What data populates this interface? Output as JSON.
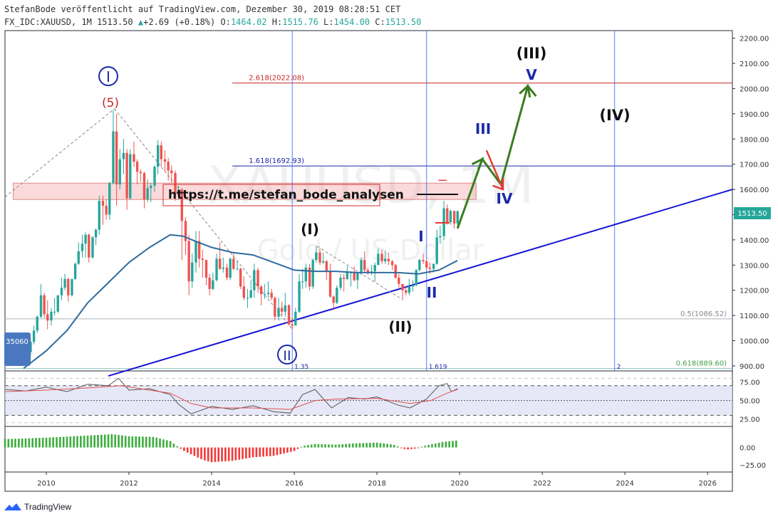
{
  "header": {
    "publish_line": "StefanBode veröffentlicht auf TradingView.com, Dezember 30, 2019 08:28:51 CET",
    "symbol": "FX_IDC:XAUUSD, 1M",
    "last": "1513.50",
    "change_arrow": "▲",
    "change": "+2.69 (+0.18%)",
    "o_label": "O:",
    "o": "1464.02",
    "h_label": "H:",
    "h": "1515.76",
    "l_label": "L:",
    "l": "1454.00",
    "c_label": "C:",
    "c": "1513.50"
  },
  "watermark": {
    "symbol": "XAUUSD, 1M",
    "name": "Gold / US-Dollar"
  },
  "price_axis": {
    "ticks": [
      "2200.00",
      "2100.00",
      "2000.00",
      "1900.00",
      "1800.00",
      "1700.00",
      "1600.00",
      "1500.00",
      "1400.00",
      "1300.00",
      "1200.00",
      "1100.00",
      "1000.00",
      "900.00"
    ],
    "last_price_badge": "1513.50"
  },
  "time_axis": {
    "ticks": [
      "2010",
      "2012",
      "2014",
      "2016",
      "2018",
      "2020",
      "2022",
      "2024",
      "2026"
    ]
  },
  "rsi_axis": {
    "ticks": [
      "75.00",
      "50.00",
      "25.00"
    ]
  },
  "osc_axis": {
    "ticks": [
      "0.00",
      "−25.00"
    ]
  },
  "left_badge": "35060",
  "annotations": {
    "link": "https://t.me/stefan_bode_analysen",
    "fib_2618": "2.618(2022.08)",
    "fib_1618": "1.618(1692.93)",
    "fib_05": "0.5(1086.52)",
    "fib_0618": "0.618(889.60)",
    "time_fib_1": "1.35",
    "time_fib_2": "1.619",
    "time_fib_3": "2",
    "wave_I_circle": "I",
    "wave_5": "(5)",
    "wave_II_circle": "II",
    "wave_I_paren": "(I)",
    "wave_II_paren": "(II)",
    "wave_I_blue": "I",
    "wave_II_blue": "II",
    "wave_III_blue": "III",
    "wave_IV_blue": "IV",
    "wave_V_blue": "V",
    "wave_III_paren": "(III)",
    "wave_IV_paren": "(IV)",
    "minus_sign": "−"
  },
  "footer": {
    "brand": "TradingView"
  },
  "colors": {
    "up": "#26a69a",
    "down": "#ef5350",
    "ma": "#2e6b9e",
    "trend": "#1414d8",
    "forecast": "#3a7d1e",
    "wave_blue": "#1a2aa8",
    "zone": "rgba(240,150,150,0.35)"
  },
  "chart_data": {
    "type": "candlestick",
    "title": "",
    "timeframe": "1M",
    "ylim": [
      880,
      2230
    ],
    "xlim": [
      2009.0,
      2026.6
    ],
    "candles": [
      [
        2009.45,
        950,
        960,
        920,
        935
      ],
      [
        2009.53,
        935,
        960,
        920,
        955
      ],
      [
        2009.62,
        955,
        1000,
        940,
        995
      ],
      [
        2009.7,
        995,
        1060,
        985,
        1040
      ],
      [
        2009.78,
        1040,
        1100,
        1030,
        1095
      ],
      [
        2009.87,
        1095,
        1225,
        1090,
        1180
      ],
      [
        2009.95,
        1180,
        1190,
        1090,
        1105
      ],
      [
        2010.03,
        1105,
        1160,
        1045,
        1080
      ],
      [
        2010.12,
        1080,
        1130,
        1060,
        1115
      ],
      [
        2010.2,
        1115,
        1170,
        1100,
        1115
      ],
      [
        2010.28,
        1115,
        1180,
        1110,
        1180
      ],
      [
        2010.37,
        1180,
        1250,
        1160,
        1210
      ],
      [
        2010.45,
        1210,
        1265,
        1200,
        1245
      ],
      [
        2010.53,
        1245,
        1250,
        1155,
        1180
      ],
      [
        2010.62,
        1180,
        1245,
        1175,
        1245
      ],
      [
        2010.7,
        1245,
        1310,
        1240,
        1305
      ],
      [
        2010.78,
        1305,
        1390,
        1300,
        1355
      ],
      [
        2010.87,
        1355,
        1420,
        1330,
        1385
      ],
      [
        2010.95,
        1385,
        1430,
        1330,
        1420
      ],
      [
        2011.03,
        1420,
        1425,
        1310,
        1330
      ],
      [
        2011.12,
        1330,
        1415,
        1325,
        1410
      ],
      [
        2011.2,
        1410,
        1445,
        1380,
        1440
      ],
      [
        2011.28,
        1440,
        1575,
        1420,
        1555
      ],
      [
        2011.37,
        1555,
        1575,
        1460,
        1535
      ],
      [
        2011.45,
        1535,
        1560,
        1480,
        1500
      ],
      [
        2011.53,
        1500,
        1630,
        1480,
        1625
      ],
      [
        2011.62,
        1625,
        1915,
        1620,
        1830
      ],
      [
        2011.7,
        1830,
        1900,
        1535,
        1620
      ],
      [
        2011.78,
        1620,
        1760,
        1600,
        1720
      ],
      [
        2011.87,
        1720,
        1800,
        1660,
        1745
      ],
      [
        2011.95,
        1745,
        1760,
        1520,
        1565
      ],
      [
        2012.03,
        1565,
        1760,
        1560,
        1740
      ],
      [
        2012.12,
        1740,
        1790,
        1690,
        1710
      ],
      [
        2012.2,
        1710,
        1720,
        1620,
        1670
      ],
      [
        2012.28,
        1670,
        1680,
        1630,
        1665
      ],
      [
        2012.37,
        1665,
        1670,
        1525,
        1560
      ],
      [
        2012.45,
        1560,
        1640,
        1550,
        1605
      ],
      [
        2012.53,
        1605,
        1625,
        1550,
        1615
      ],
      [
        2012.62,
        1615,
        1695,
        1590,
        1690
      ],
      [
        2012.7,
        1690,
        1795,
        1660,
        1775
      ],
      [
        2012.78,
        1775,
        1790,
        1690,
        1720
      ],
      [
        2012.87,
        1720,
        1755,
        1670,
        1710
      ],
      [
        2012.95,
        1710,
        1725,
        1635,
        1675
      ],
      [
        2013.03,
        1675,
        1695,
        1625,
        1665
      ],
      [
        2013.12,
        1665,
        1675,
        1555,
        1580
      ],
      [
        2013.2,
        1580,
        1615,
        1560,
        1600
      ],
      [
        2013.28,
        1600,
        1605,
        1320,
        1475
      ],
      [
        2013.37,
        1475,
        1490,
        1340,
        1395
      ],
      [
        2013.45,
        1395,
        1420,
        1180,
        1235
      ],
      [
        2013.53,
        1235,
        1345,
        1210,
        1310
      ],
      [
        2013.62,
        1310,
        1435,
        1270,
        1395
      ],
      [
        2013.7,
        1395,
        1435,
        1290,
        1325
      ],
      [
        2013.78,
        1325,
        1360,
        1250,
        1320
      ],
      [
        2013.87,
        1320,
        1320,
        1220,
        1250
      ],
      [
        2013.95,
        1250,
        1265,
        1180,
        1205
      ],
      [
        2014.03,
        1205,
        1270,
        1200,
        1240
      ],
      [
        2014.12,
        1240,
        1345,
        1235,
        1325
      ],
      [
        2014.2,
        1325,
        1390,
        1280,
        1285
      ],
      [
        2014.28,
        1285,
        1330,
        1270,
        1290
      ],
      [
        2014.37,
        1290,
        1305,
        1240,
        1250
      ],
      [
        2014.45,
        1250,
        1330,
        1240,
        1325
      ],
      [
        2014.53,
        1325,
        1345,
        1280,
        1285
      ],
      [
        2014.62,
        1285,
        1315,
        1280,
        1285
      ],
      [
        2014.7,
        1285,
        1290,
        1205,
        1215
      ],
      [
        2014.78,
        1215,
        1255,
        1160,
        1170
      ],
      [
        2014.87,
        1170,
        1205,
        1130,
        1170
      ],
      [
        2014.95,
        1170,
        1240,
        1170,
        1200
      ],
      [
        2015.03,
        1200,
        1305,
        1170,
        1280
      ],
      [
        2015.12,
        1280,
        1290,
        1190,
        1215
      ],
      [
        2015.2,
        1215,
        1220,
        1140,
        1185
      ],
      [
        2015.28,
        1185,
        1225,
        1165,
        1185
      ],
      [
        2015.37,
        1185,
        1235,
        1170,
        1190
      ],
      [
        2015.45,
        1190,
        1205,
        1160,
        1170
      ],
      [
        2015.53,
        1170,
        1175,
        1080,
        1095
      ],
      [
        2015.62,
        1095,
        1170,
        1080,
        1130
      ],
      [
        2015.7,
        1130,
        1155,
        1100,
        1115
      ],
      [
        2015.78,
        1115,
        1190,
        1095,
        1140
      ],
      [
        2015.87,
        1140,
        1145,
        1060,
        1065
      ],
      [
        2015.95,
        1065,
        1090,
        1045,
        1060
      ],
      [
        2016.03,
        1060,
        1130,
        1060,
        1115
      ],
      [
        2016.12,
        1115,
        1265,
        1110,
        1235
      ],
      [
        2016.2,
        1235,
        1285,
        1205,
        1235
      ],
      [
        2016.28,
        1235,
        1305,
        1210,
        1290
      ],
      [
        2016.37,
        1290,
        1305,
        1200,
        1215
      ],
      [
        2016.45,
        1215,
        1325,
        1205,
        1320
      ],
      [
        2016.53,
        1320,
        1375,
        1310,
        1350
      ],
      [
        2016.62,
        1350,
        1365,
        1300,
        1310
      ],
      [
        2016.7,
        1310,
        1350,
        1305,
        1315
      ],
      [
        2016.78,
        1315,
        1320,
        1240,
        1275
      ],
      [
        2016.87,
        1275,
        1305,
        1170,
        1175
      ],
      [
        2016.95,
        1175,
        1180,
        1120,
        1150
      ],
      [
        2017.03,
        1150,
        1220,
        1145,
        1210
      ],
      [
        2017.12,
        1210,
        1265,
        1200,
        1250
      ],
      [
        2017.2,
        1250,
        1265,
        1195,
        1245
      ],
      [
        2017.28,
        1245,
        1295,
        1240,
        1270
      ],
      [
        2017.37,
        1270,
        1275,
        1215,
        1270
      ],
      [
        2017.45,
        1270,
        1295,
        1235,
        1240
      ],
      [
        2017.53,
        1240,
        1270,
        1205,
        1270
      ],
      [
        2017.62,
        1270,
        1330,
        1260,
        1320
      ],
      [
        2017.7,
        1320,
        1355,
        1270,
        1280
      ],
      [
        2017.78,
        1280,
        1290,
        1260,
        1270
      ],
      [
        2017.87,
        1270,
        1300,
        1260,
        1275
      ],
      [
        2017.95,
        1275,
        1310,
        1235,
        1300
      ],
      [
        2018.03,
        1300,
        1365,
        1300,
        1345
      ],
      [
        2018.12,
        1345,
        1360,
        1305,
        1315
      ],
      [
        2018.2,
        1315,
        1355,
        1305,
        1325
      ],
      [
        2018.28,
        1325,
        1350,
        1300,
        1315
      ],
      [
        2018.37,
        1315,
        1320,
        1280,
        1300
      ],
      [
        2018.45,
        1300,
        1305,
        1245,
        1250
      ],
      [
        2018.53,
        1250,
        1265,
        1210,
        1225
      ],
      [
        2018.62,
        1225,
        1225,
        1160,
        1200
      ],
      [
        2018.7,
        1200,
        1215,
        1180,
        1190
      ],
      [
        2018.78,
        1190,
        1245,
        1180,
        1215
      ],
      [
        2018.87,
        1215,
        1240,
        1195,
        1220
      ],
      [
        2018.95,
        1220,
        1285,
        1215,
        1280
      ],
      [
        2019.03,
        1280,
        1325,
        1275,
        1320
      ],
      [
        2019.12,
        1320,
        1345,
        1305,
        1315
      ],
      [
        2019.2,
        1315,
        1320,
        1280,
        1290
      ],
      [
        2019.28,
        1290,
        1310,
        1265,
        1285
      ],
      [
        2019.37,
        1285,
        1305,
        1270,
        1305
      ],
      [
        2019.45,
        1305,
        1440,
        1300,
        1410
      ],
      [
        2019.53,
        1410,
        1455,
        1385,
        1415
      ],
      [
        2019.62,
        1415,
        1555,
        1400,
        1525
      ],
      [
        2019.7,
        1525,
        1540,
        1460,
        1470
      ],
      [
        2019.78,
        1470,
        1520,
        1460,
        1515
      ],
      [
        2019.87,
        1515,
        1515,
        1445,
        1465
      ],
      [
        2019.95,
        1465,
        1516,
        1454,
        1513.5
      ]
    ],
    "moving_average": [
      [
        2009.45,
        890
      ],
      [
        2010.0,
        960
      ],
      [
        2010.5,
        1040
      ],
      [
        2011.0,
        1150
      ],
      [
        2011.5,
        1230
      ],
      [
        2012.0,
        1310
      ],
      [
        2012.5,
        1370
      ],
      [
        2013.0,
        1420
      ],
      [
        2013.3,
        1415
      ],
      [
        2013.6,
        1395
      ],
      [
        2014.0,
        1370
      ],
      [
        2014.5,
        1350
      ],
      [
        2015.0,
        1340
      ],
      [
        2015.5,
        1310
      ],
      [
        2016.0,
        1280
      ],
      [
        2016.5,
        1275
      ],
      [
        2017.0,
        1275
      ],
      [
        2017.5,
        1270
      ],
      [
        2018.0,
        1270
      ],
      [
        2018.5,
        1270
      ],
      [
        2019.0,
        1265
      ],
      [
        2019.5,
        1280
      ],
      [
        2019.95,
        1318
      ]
    ],
    "rsi": [
      [
        2009.0,
        65
      ],
      [
        2009.5,
        63
      ],
      [
        2010.0,
        68
      ],
      [
        2010.5,
        62
      ],
      [
        2011.0,
        72
      ],
      [
        2011.5,
        70
      ],
      [
        2011.75,
        80
      ],
      [
        2012.0,
        64
      ],
      [
        2012.5,
        66
      ],
      [
        2013.0,
        58
      ],
      [
        2013.2,
        45
      ],
      [
        2013.5,
        32
      ],
      [
        2014.0,
        42
      ],
      [
        2014.5,
        38
      ],
      [
        2015.0,
        43
      ],
      [
        2015.5,
        35
      ],
      [
        2015.9,
        33
      ],
      [
        2016.2,
        58
      ],
      [
        2016.5,
        65
      ],
      [
        2016.9,
        40
      ],
      [
        2017.3,
        54
      ],
      [
        2017.7,
        52
      ],
      [
        2018.0,
        55
      ],
      [
        2018.5,
        44
      ],
      [
        2018.8,
        40
      ],
      [
        2019.2,
        52
      ],
      [
        2019.5,
        70
      ],
      [
        2019.7,
        73
      ],
      [
        2019.8,
        62
      ],
      [
        2019.95,
        66
      ]
    ],
    "rsi_signal": [
      [
        2009.0,
        62
      ],
      [
        2010.0,
        64
      ],
      [
        2011.0,
        67
      ],
      [
        2011.8,
        70
      ],
      [
        2012.5,
        64
      ],
      [
        2013.0,
        60
      ],
      [
        2013.5,
        46
      ],
      [
        2014.0,
        40
      ],
      [
        2015.0,
        40
      ],
      [
        2015.9,
        38
      ],
      [
        2016.5,
        50
      ],
      [
        2017.0,
        52
      ],
      [
        2018.0,
        53
      ],
      [
        2018.8,
        46
      ],
      [
        2019.3,
        50
      ],
      [
        2019.7,
        60
      ],
      [
        2019.95,
        65
      ]
    ],
    "oscillator": [
      [
        2009.0,
        12
      ],
      [
        2010.0,
        14
      ],
      [
        2011.0,
        17
      ],
      [
        2011.6,
        19
      ],
      [
        2012.0,
        16
      ],
      [
        2012.6,
        15
      ],
      [
        2013.0,
        9
      ],
      [
        2013.3,
        -4
      ],
      [
        2013.8,
        -18
      ],
      [
        2014.0,
        -21
      ],
      [
        2014.5,
        -19
      ],
      [
        2015.0,
        -14
      ],
      [
        2015.5,
        -12
      ],
      [
        2016.0,
        -5
      ],
      [
        2016.2,
        2
      ],
      [
        2016.5,
        5
      ],
      [
        2017.0,
        4
      ],
      [
        2017.5,
        6
      ],
      [
        2018.0,
        7
      ],
      [
        2018.4,
        4
      ],
      [
        2018.7,
        -3
      ],
      [
        2018.9,
        -2
      ],
      [
        2019.2,
        3
      ],
      [
        2019.6,
        8
      ],
      [
        2019.95,
        10
      ]
    ],
    "rsi_ylim": [
      15,
      90
    ],
    "osc_ylim": [
      -35,
      30
    ],
    "price_ticks": [
      2200,
      2100,
      2000,
      1900,
      1800,
      1700,
      1600,
      1500,
      1400,
      1300,
      1200,
      1100,
      1000,
      900
    ],
    "year_ticks": [
      2010,
      2012,
      2014,
      2016,
      2018,
      2020,
      2022,
      2024,
      2026
    ],
    "fib_levels": [
      {
        "label": "2.618(2022.08)",
        "price": 2022.08
      },
      {
        "label": "1.618(1692.93)",
        "price": 1692.93
      },
      {
        "label": "0.5(1086.52)",
        "price": 1086.52
      },
      {
        "label": "0.618(889.60)",
        "price": 889.6
      }
    ],
    "time_fib_years": [
      2015.95,
      2019.2,
      2023.75
    ],
    "resistance_zone": [
      1560,
      1625
    ],
    "trendline": [
      [
        2011.5,
        860
      ],
      [
        2026.6,
        1600
      ]
    ],
    "forecast_path": [
      [
        2019.95,
        1445
      ],
      [
        2020.55,
        1720
      ],
      [
        2021.0,
        1620
      ],
      [
        2021.65,
        2010
      ],
      [
        2021.85,
        1970
      ]
    ],
    "grid": false
  }
}
